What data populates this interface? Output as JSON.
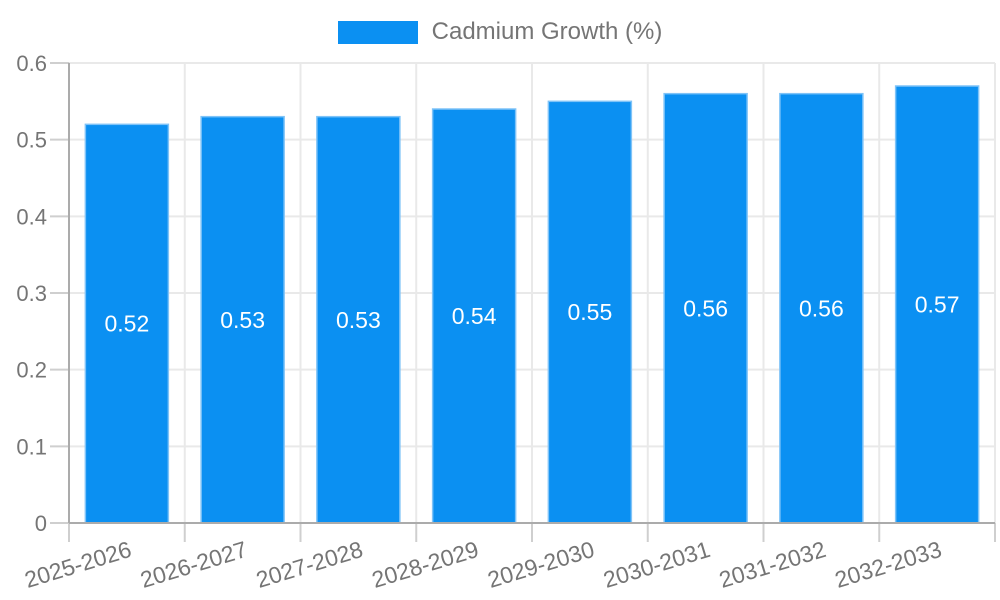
{
  "legend": {
    "label": "Cadmium Growth (%)"
  },
  "chart_data": {
    "type": "bar",
    "title": "",
    "xlabel": "",
    "ylabel": "",
    "categories": [
      "2025-2026",
      "2026-2027",
      "2027-2028",
      "2028-2029",
      "2029-2030",
      "2030-2031",
      "2031-2032",
      "2032-2033"
    ],
    "series": [
      {
        "name": "Cadmium Growth (%)",
        "values": [
          0.52,
          0.53,
          0.53,
          0.54,
          0.55,
          0.56,
          0.56,
          0.57
        ],
        "value_labels": [
          "0.52",
          "0.53",
          "0.53",
          "0.54",
          "0.55",
          "0.56",
          "0.56",
          "0.57"
        ]
      }
    ],
    "ylim": [
      0,
      0.6
    ],
    "yticks": [
      0,
      0.1,
      0.2,
      0.3,
      0.4,
      0.5,
      0.6
    ],
    "ytick_labels": [
      "0",
      "0.1",
      "0.2",
      "0.3",
      "0.4",
      "0.5",
      "0.6"
    ],
    "grid": true,
    "legend_position": "top-center",
    "colors": {
      "bar_fill": "#0b90f2",
      "bar_border": "#7fc3f8",
      "value_label": "#ffffff",
      "axis_line": "#ababab",
      "tick_line": "#cfcfcf",
      "grid_line": "#e9e9e9",
      "tick_label": "#757575"
    }
  }
}
